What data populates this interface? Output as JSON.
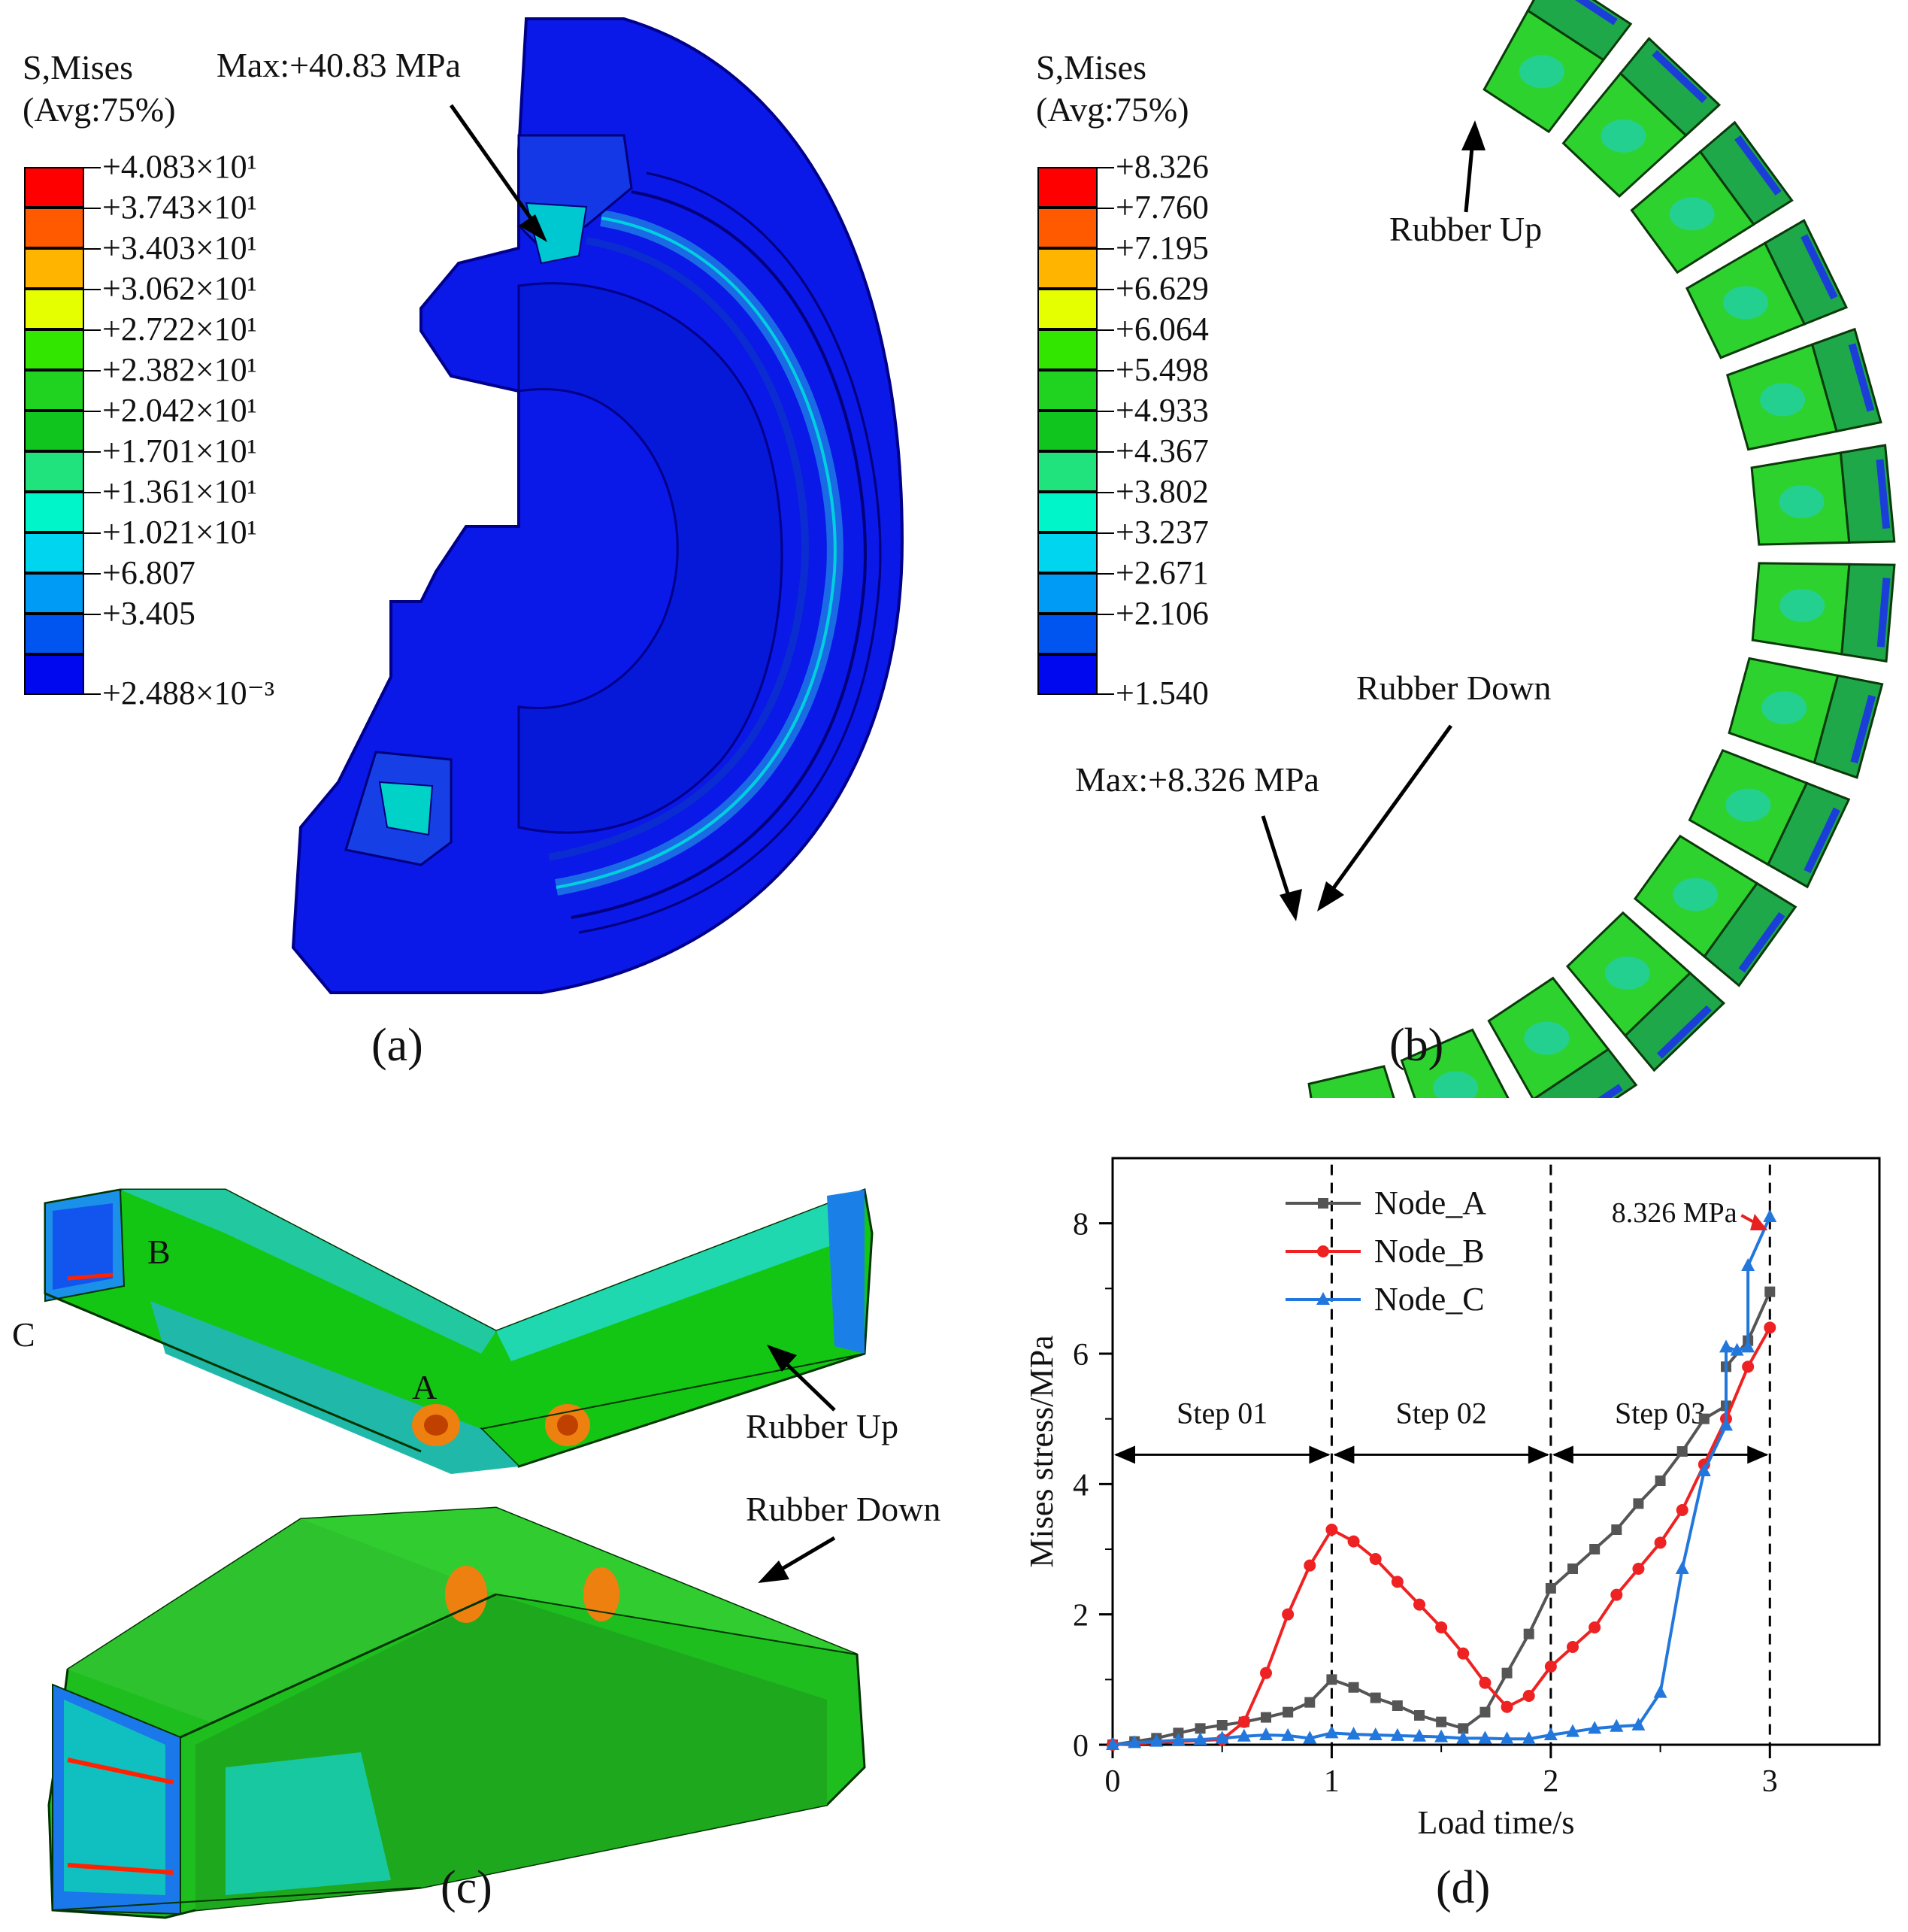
{
  "panel_a": {
    "legend_title_1": "S,Mises",
    "legend_title_2": "(Avg:75%)",
    "legend_colors": [
      "#ff0000",
      "#ff5a00",
      "#ffb400",
      "#e6ff00",
      "#33e600",
      "#21d321",
      "#10c61e",
      "#20e37d",
      "#00f5c8",
      "#00d5f0",
      "#009bf5",
      "#0055f0",
      "#0008f0"
    ],
    "legend_labels": [
      "+4.083×10¹",
      "+3.743×10¹",
      "+3.403×10¹",
      "+3.062×10¹",
      "+2.722×10¹",
      "+2.382×10¹",
      "+2.042×10¹",
      "+1.701×10¹",
      "+1.361×10¹",
      "+1.021×10¹",
      "+6.807",
      "+3.405",
      "+2.488×10⁻³"
    ],
    "max_annotation": "Max:+40.83 MPa",
    "caption": "(a)"
  },
  "panel_b": {
    "legend_title_1": "S,Mises",
    "legend_title_2": "(Avg:75%)",
    "legend_colors": [
      "#ff0000",
      "#ff5a00",
      "#ffb400",
      "#e6ff00",
      "#33e600",
      "#21d321",
      "#10c61e",
      "#20e37d",
      "#00f5c8",
      "#00d5f0",
      "#009bf5",
      "#0055f0",
      "#0008f0"
    ],
    "legend_labels": [
      "+8.326",
      "+7.760",
      "+7.195",
      "+6.629",
      "+6.064",
      "+5.498",
      "+4.933",
      "+4.367",
      "+3.802",
      "+3.237",
      "+2.671",
      "+2.106",
      "+1.540"
    ],
    "label_rubber_up": "Rubber Up",
    "label_rubber_down": "Rubber Down",
    "max_annotation": "Max:+8.326 MPa",
    "caption": "(b)"
  },
  "panel_c": {
    "point_a": "A",
    "point_b": "B",
    "point_c": "C",
    "label_rubber_up": "Rubber Up",
    "label_rubber_down": "Rubber Down",
    "caption": "(c)"
  },
  "panel_d": {
    "caption": "(d)",
    "chart_data": {
      "type": "line",
      "xlabel": "Load time/s",
      "ylabel": "Mises stress/MPa",
      "xlim": [
        0,
        3.5
      ],
      "ylim": [
        0,
        9
      ],
      "xticks": [
        "0",
        "1",
        "2",
        "3"
      ],
      "yticks": [
        "0",
        "2",
        "4",
        "6",
        "8"
      ],
      "legend_position": "top-left",
      "steps": [
        {
          "label": "Step 01",
          "from": 0,
          "to": 1
        },
        {
          "label": "Step 02",
          "from": 1,
          "to": 2
        },
        {
          "label": "Step 03",
          "from": 2,
          "to": 3
        }
      ],
      "annotation": "8.326 MPa",
      "series": [
        {
          "name": "Node_A",
          "color": "#555555",
          "marker": "square",
          "x": [
            0,
            0.1,
            0.2,
            0.3,
            0.4,
            0.5,
            0.6,
            0.7,
            0.8,
            0.9,
            1.0,
            1.1,
            1.2,
            1.3,
            1.4,
            1.5,
            1.6,
            1.7,
            1.8,
            1.9,
            2.0,
            2.1,
            2.2,
            2.3,
            2.4,
            2.5,
            2.6,
            2.7,
            2.8,
            2.8,
            2.9,
            3.0
          ],
          "y": [
            0,
            0.05,
            0.1,
            0.18,
            0.25,
            0.3,
            0.35,
            0.42,
            0.5,
            0.65,
            1.0,
            0.88,
            0.72,
            0.6,
            0.45,
            0.35,
            0.25,
            0.5,
            1.1,
            1.7,
            2.4,
            2.7,
            3.0,
            3.3,
            3.7,
            4.05,
            4.5,
            5.0,
            5.2,
            5.8,
            6.2,
            6.95
          ]
        },
        {
          "name": "Node_B",
          "color": "#ee2222",
          "marker": "circle",
          "x": [
            0,
            0.5,
            0.6,
            0.7,
            0.8,
            0.9,
            1.0,
            1.1,
            1.2,
            1.3,
            1.4,
            1.5,
            1.6,
            1.7,
            1.8,
            1.9,
            2.0,
            2.1,
            2.2,
            2.3,
            2.4,
            2.5,
            2.6,
            2.7,
            2.8,
            2.9,
            3.0
          ],
          "y": [
            0,
            0.08,
            0.35,
            1.1,
            2.0,
            2.75,
            3.3,
            3.12,
            2.85,
            2.5,
            2.15,
            1.8,
            1.4,
            0.95,
            0.58,
            0.75,
            1.2,
            1.5,
            1.8,
            2.3,
            2.7,
            3.1,
            3.6,
            4.3,
            5.0,
            5.8,
            6.4
          ]
        },
        {
          "name": "Node_C",
          "color": "#2277dd",
          "marker": "triangle",
          "x": [
            0,
            0.1,
            0.2,
            0.3,
            0.4,
            0.5,
            0.6,
            0.7,
            0.8,
            0.9,
            1.0,
            1.1,
            1.2,
            1.3,
            1.4,
            1.5,
            1.6,
            1.7,
            1.8,
            1.9,
            2.0,
            2.1,
            2.2,
            2.3,
            2.4,
            2.5,
            2.6,
            2.7,
            2.8,
            2.8,
            2.85,
            2.9,
            2.9,
            3.0
          ],
          "y": [
            0,
            0.03,
            0.05,
            0.07,
            0.08,
            0.1,
            0.13,
            0.15,
            0.14,
            0.1,
            0.18,
            0.16,
            0.15,
            0.14,
            0.13,
            0.12,
            0.1,
            0.1,
            0.09,
            0.09,
            0.15,
            0.2,
            0.25,
            0.28,
            0.3,
            0.8,
            2.7,
            4.2,
            4.9,
            6.1,
            6.05,
            6.1,
            7.35,
            8.1
          ]
        }
      ]
    }
  }
}
